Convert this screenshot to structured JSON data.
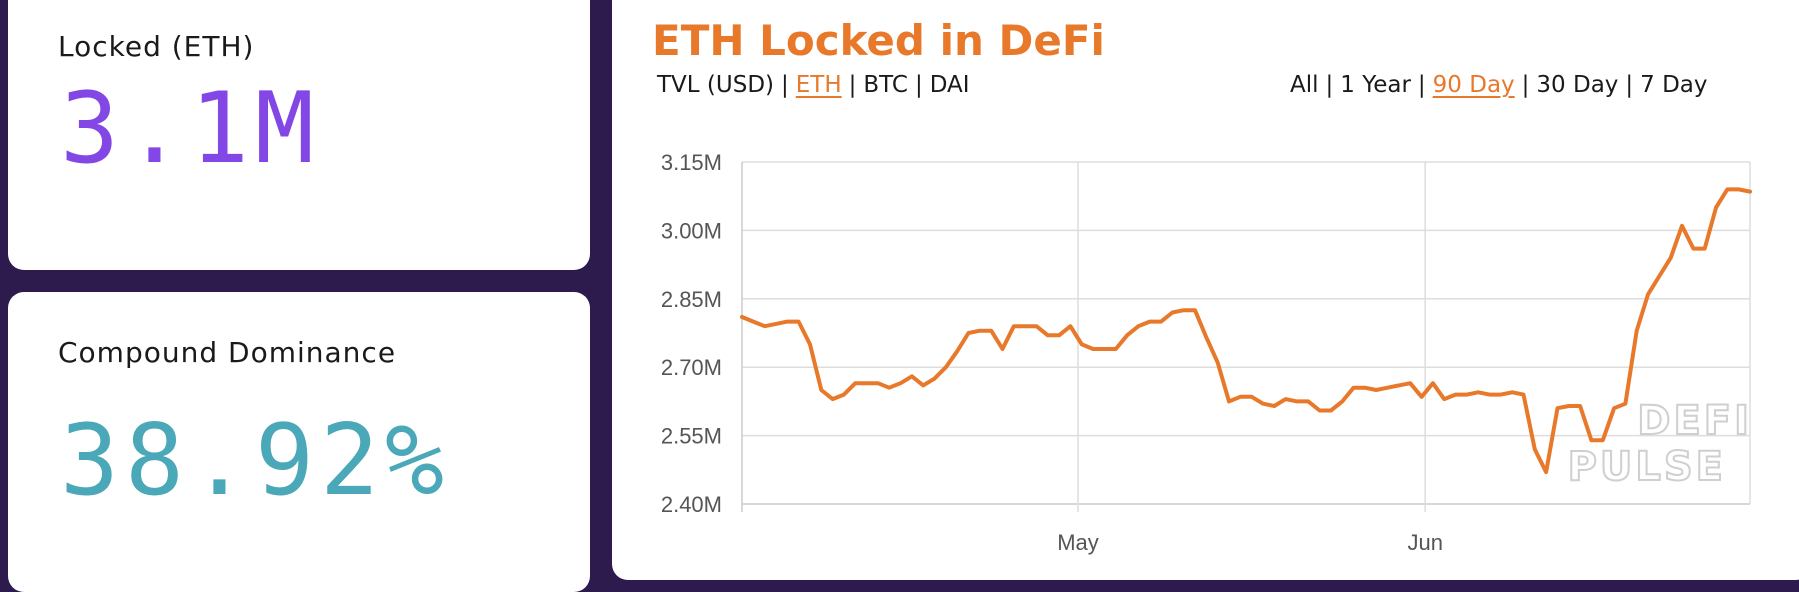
{
  "locked_card": {
    "label": "Locked (ETH)",
    "value": "3.1M"
  },
  "dominance_card": {
    "label": "Compound Dominance",
    "value": "38.92%"
  },
  "chart_panel": {
    "title": "ETH Locked in DeFi",
    "metric_filters": [
      {
        "label": "TVL (USD)",
        "active": false
      },
      {
        "label": "ETH",
        "active": true
      },
      {
        "label": "BTC",
        "active": false
      },
      {
        "label": "DAI",
        "active": false
      }
    ],
    "range_filters": [
      {
        "label": "All",
        "active": false
      },
      {
        "label": "1 Year",
        "active": false
      },
      {
        "label": "90 Day",
        "active": true
      },
      {
        "label": "30 Day",
        "active": false
      },
      {
        "label": "7 Day",
        "active": false
      }
    ],
    "watermark": [
      "DEFI",
      "PULSE"
    ]
  },
  "colors": {
    "accent": "#e8782a",
    "purple": "#8247e5",
    "teal": "#4aa8b8",
    "background": "#2d1b4e"
  },
  "chart_data": {
    "type": "line",
    "title": "",
    "xlabel": "",
    "ylabel": "",
    "ylim": [
      2.4,
      3.15
    ],
    "yticks": [
      {
        "value": 3.15,
        "label": "3.15M"
      },
      {
        "value": 3.0,
        "label": "3.00M"
      },
      {
        "value": 2.85,
        "label": "2.85M"
      },
      {
        "value": 2.7,
        "label": "2.70M"
      },
      {
        "value": 2.55,
        "label": "2.55M"
      },
      {
        "value": 2.4,
        "label": "2.40M"
      }
    ],
    "xlim": [
      0,
      90
    ],
    "xticks": [
      {
        "value": 30,
        "label": "May"
      },
      {
        "value": 61,
        "label": "Jun"
      }
    ],
    "grid": true,
    "series": [
      {
        "values": [
          2.81,
          2.8,
          2.79,
          2.795,
          2.8,
          2.8,
          2.75,
          2.65,
          2.63,
          2.64,
          2.665,
          2.665,
          2.665,
          2.655,
          2.665,
          2.68,
          2.66,
          2.675,
          2.7,
          2.735,
          2.775,
          2.78,
          2.78,
          2.74,
          2.79,
          2.79,
          2.79,
          2.77,
          2.77,
          2.79,
          2.75,
          2.74,
          2.74,
          2.74,
          2.77,
          2.79,
          2.8,
          2.8,
          2.82,
          2.825,
          2.825,
          2.765,
          2.71,
          2.625,
          2.635,
          2.635,
          2.62,
          2.615,
          2.63,
          2.625,
          2.625,
          2.605,
          2.605,
          2.625,
          2.655,
          2.655,
          2.65,
          2.655,
          2.66,
          2.665,
          2.635,
          2.665,
          2.63,
          2.64,
          2.64,
          2.645,
          2.64,
          2.64,
          2.645,
          2.64,
          2.52,
          2.47,
          2.61,
          2.615,
          2.615,
          2.54,
          2.54,
          2.61,
          2.62,
          2.78,
          2.86,
          2.9,
          2.94,
          3.01,
          2.96,
          2.96,
          3.05,
          3.09,
          3.09,
          3.085
        ]
      }
    ]
  }
}
